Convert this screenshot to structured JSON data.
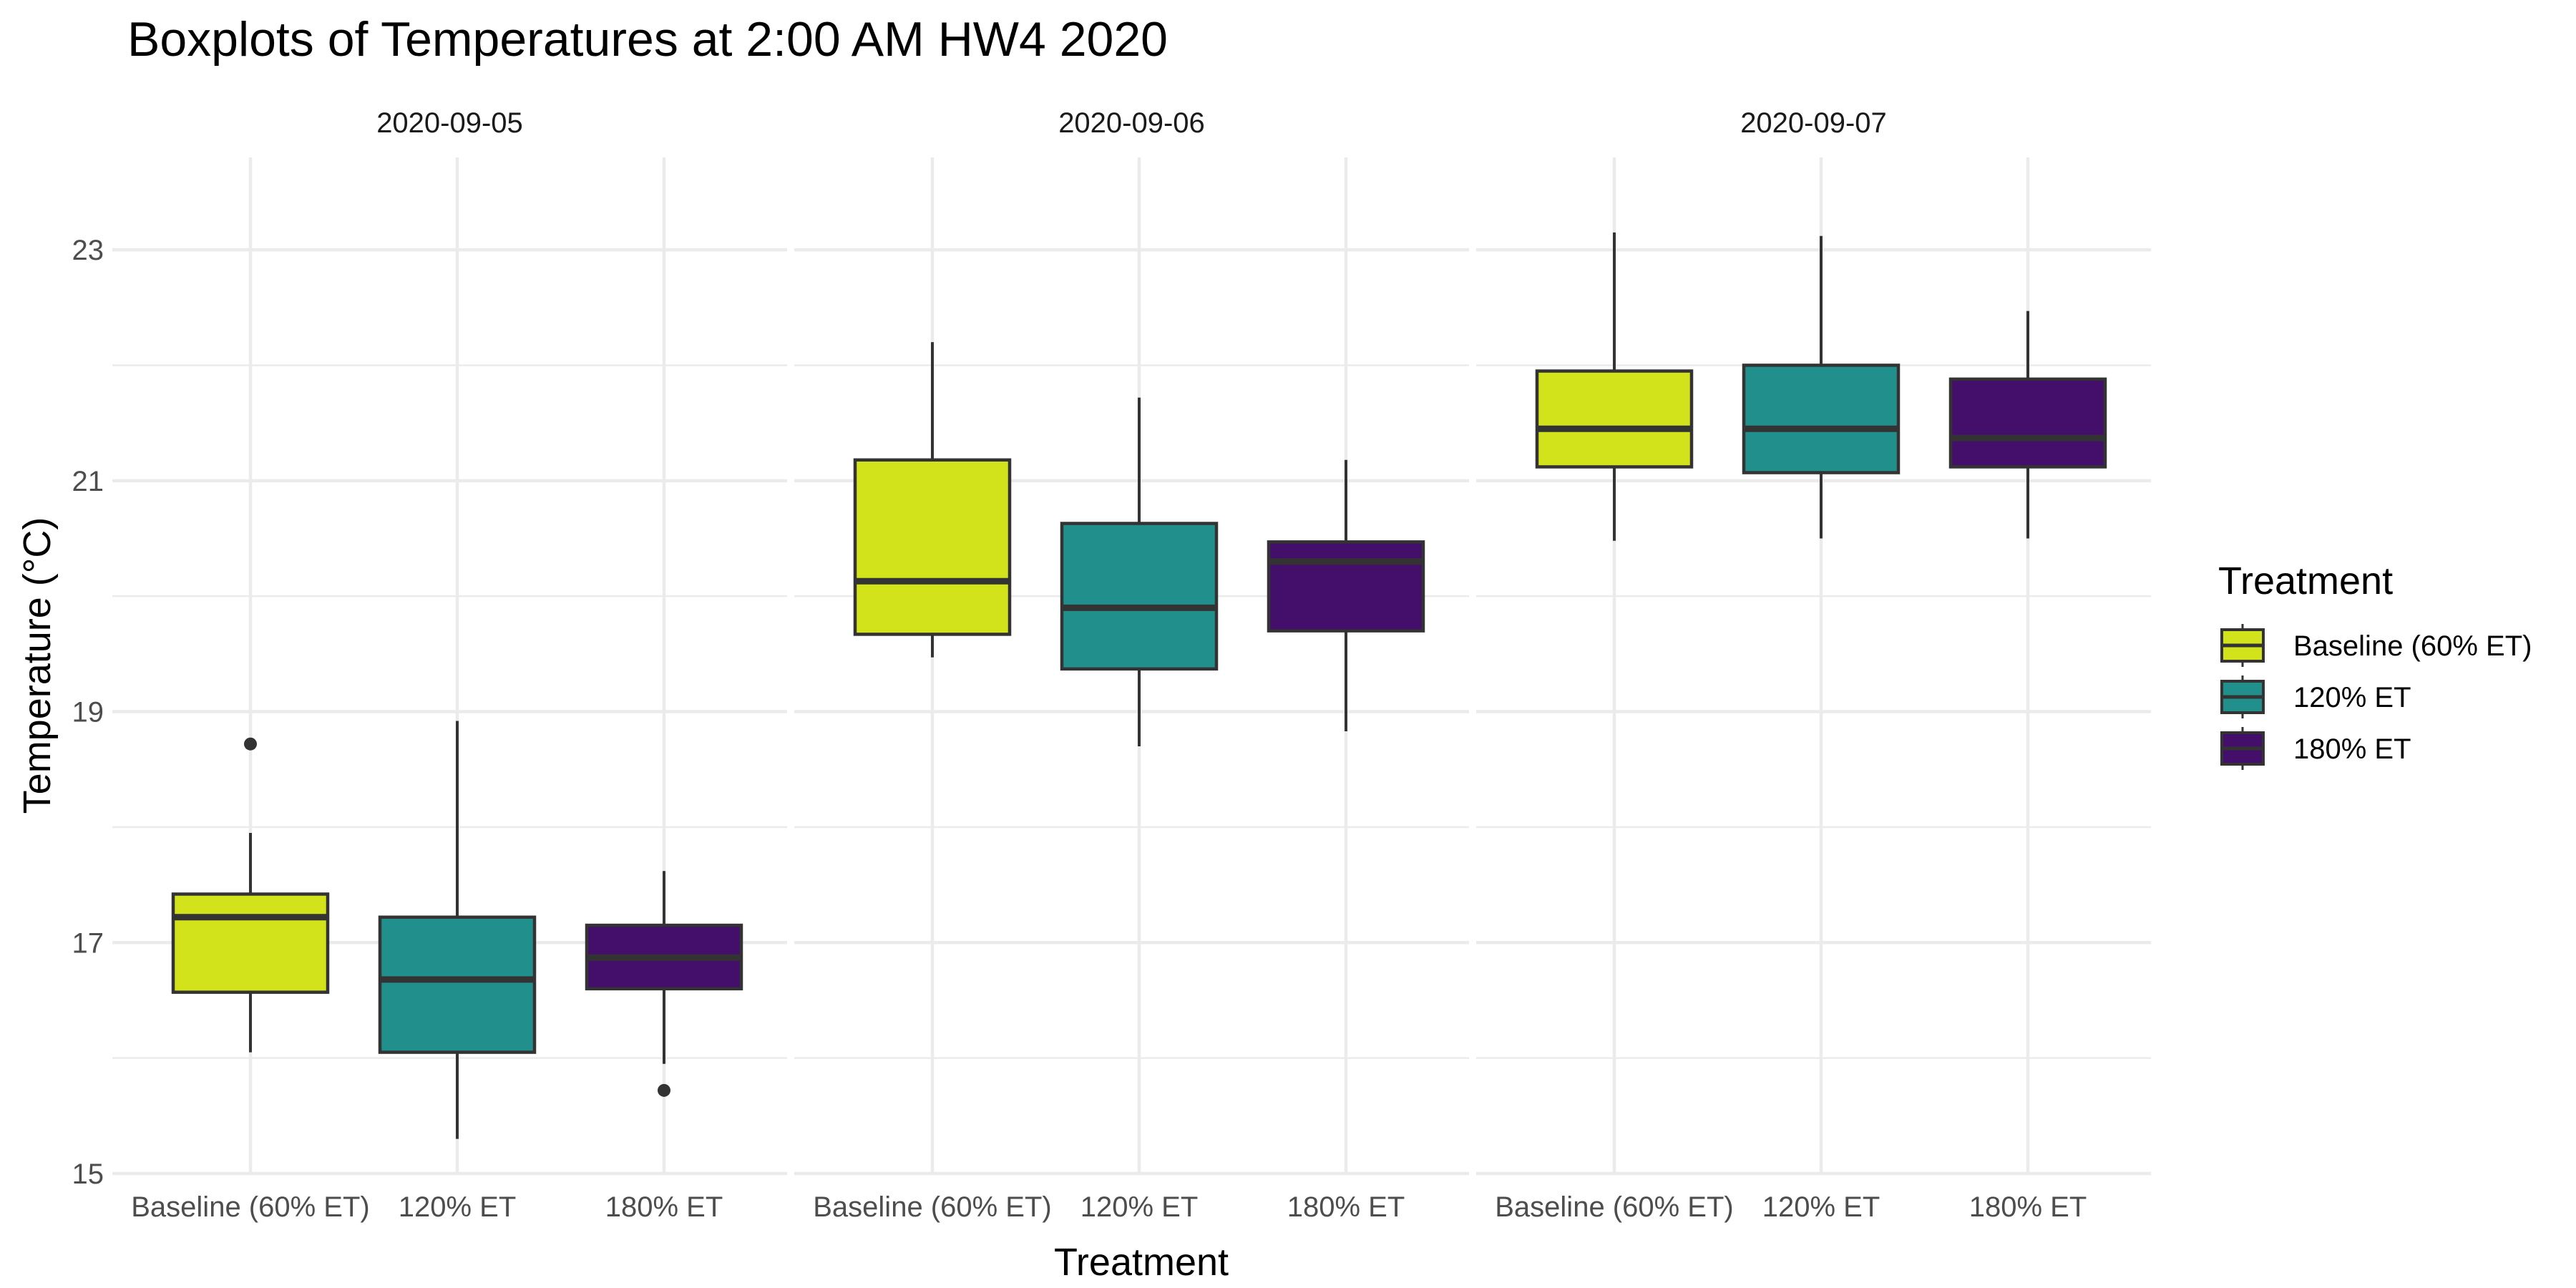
{
  "chart_data": {
    "type": "boxplot",
    "title": "Boxplots of Temperatures at 2:00 AM HW4 2020",
    "xlabel": "Treatment",
    "ylabel": "Temperature (°C)",
    "ylim": [
      15,
      23.8
    ],
    "y_ticks": [
      "15",
      "17",
      "19",
      "21",
      "23"
    ],
    "y_tick_values": [
      15,
      17,
      19,
      21,
      23
    ],
    "grid": true,
    "categories": [
      "Baseline (60% ET)",
      "120% ET",
      "180% ET"
    ],
    "colors": {
      "Baseline (60% ET)": "#d2e21b",
      "120% ET": "#21908d",
      "180% ET": "#440f6b"
    },
    "box_stroke": "#333333",
    "legend": {
      "title": "Treatment",
      "position": "right",
      "entries": [
        "Baseline (60% ET)",
        "120% ET",
        "180% ET"
      ]
    },
    "panels": [
      {
        "label": "2020-09-05",
        "boxes": [
          {
            "treatment": "Baseline (60% ET)",
            "whisker_low": 16.05,
            "q1": 16.57,
            "median": 17.22,
            "q3": 17.42,
            "whisker_high": 17.95,
            "outliers": [
              18.72
            ]
          },
          {
            "treatment": "120% ET",
            "whisker_low": 15.3,
            "q1": 16.05,
            "median": 16.68,
            "q3": 17.22,
            "whisker_high": 18.92,
            "outliers": []
          },
          {
            "treatment": "180% ET",
            "whisker_low": 15.95,
            "q1": 16.6,
            "median": 16.87,
            "q3": 17.15,
            "whisker_high": 17.62,
            "outliers": [
              15.72
            ]
          }
        ]
      },
      {
        "label": "2020-09-06",
        "boxes": [
          {
            "treatment": "Baseline (60% ET)",
            "whisker_low": 19.47,
            "q1": 19.67,
            "median": 20.13,
            "q3": 21.18,
            "whisker_high": 22.2,
            "outliers": []
          },
          {
            "treatment": "120% ET",
            "whisker_low": 18.7,
            "q1": 19.37,
            "median": 19.9,
            "q3": 20.63,
            "whisker_high": 21.72,
            "outliers": []
          },
          {
            "treatment": "180% ET",
            "whisker_low": 18.83,
            "q1": 19.7,
            "median": 20.3,
            "q3": 20.47,
            "whisker_high": 21.18,
            "outliers": []
          }
        ]
      },
      {
        "label": "2020-09-07",
        "boxes": [
          {
            "treatment": "Baseline (60% ET)",
            "whisker_low": 20.48,
            "q1": 21.12,
            "median": 21.45,
            "q3": 21.95,
            "whisker_high": 23.15,
            "outliers": []
          },
          {
            "treatment": "120% ET",
            "whisker_low": 20.5,
            "q1": 21.07,
            "median": 21.45,
            "q3": 22.0,
            "whisker_high": 23.12,
            "outliers": []
          },
          {
            "treatment": "180% ET",
            "whisker_low": 20.5,
            "q1": 21.12,
            "median": 21.37,
            "q3": 21.88,
            "whisker_high": 22.47,
            "outliers": []
          }
        ]
      }
    ]
  }
}
